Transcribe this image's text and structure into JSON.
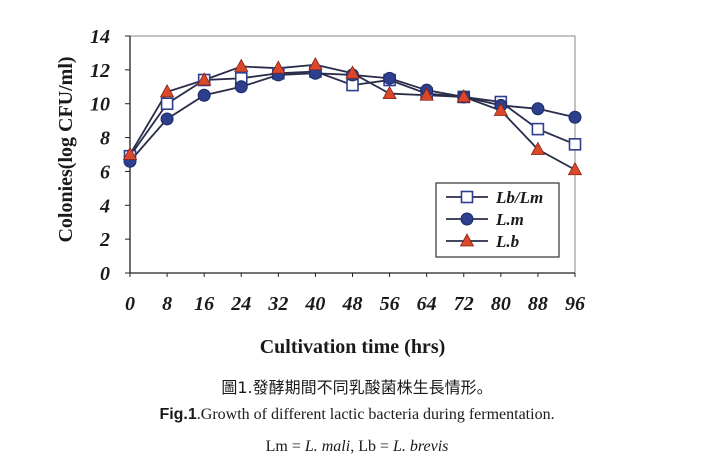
{
  "chart_data": {
    "type": "line",
    "xlabel": "Cultivation time (hrs)",
    "ylabel": "Colonies(log CFU/ml)",
    "x": [
      0,
      8,
      16,
      24,
      32,
      40,
      48,
      56,
      64,
      72,
      80,
      88,
      96
    ],
    "xlim": [
      0,
      96
    ],
    "ylim": [
      0,
      14
    ],
    "xticks": [
      "0",
      "8",
      "16",
      "24",
      "32",
      "40",
      "48",
      "56",
      "64",
      "72",
      "80",
      "88",
      "96"
    ],
    "yticks": [
      "0",
      "2",
      "4",
      "6",
      "8",
      "10",
      "12",
      "14"
    ],
    "grid": false,
    "legend_position": "lower-right",
    "series": [
      {
        "name": "Lb/Lm",
        "marker": "square-open",
        "color": "#2c3f8c",
        "values": [
          6.9,
          10.0,
          11.4,
          11.5,
          11.8,
          11.9,
          11.1,
          11.4,
          10.6,
          10.4,
          10.1,
          8.5,
          7.6
        ]
      },
      {
        "name": "L.m",
        "marker": "circle",
        "color": "#2c3f8c",
        "values": [
          6.6,
          9.1,
          10.5,
          11.0,
          11.7,
          11.8,
          11.7,
          11.5,
          10.8,
          10.4,
          9.9,
          9.7,
          9.2
        ]
      },
      {
        "name": "L.b",
        "marker": "triangle",
        "color": "#d9482b",
        "values": [
          7.0,
          10.7,
          11.4,
          12.2,
          12.1,
          12.3,
          11.8,
          10.6,
          10.5,
          10.4,
          9.6,
          7.3,
          6.1
        ]
      }
    ]
  },
  "caption": {
    "zh": "圖1.發酵期間不同乳酸菌株生長情形。",
    "en_prefix": "Fig.1",
    "en_text": ".Growth of different lactic bacteria during fermentation.",
    "abbr_lm_prefix": "Lm = ",
    "abbr_lm": "L. mali",
    "abbr_sep": ", Lb = ",
    "abbr_lb": "L. brevis"
  }
}
